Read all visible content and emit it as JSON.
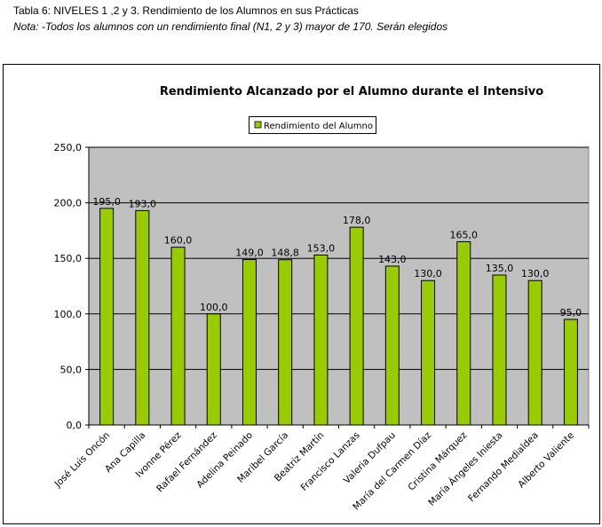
{
  "caption": {
    "title": "Tabla 6: NIVELES 1 ,2 y 3. Rendimiento de los Alumnos en sus Prácticas",
    "note": "Nota: -Todos los alumnos con un rendimiento final (N1, 2 y 3) mayor de 170. Serán elegidos"
  },
  "chart_data": {
    "type": "bar",
    "title": "Rendimiento Alcanzado por el Alumno durante el Intensivo",
    "legend": [
      "Rendimiento del Alumno"
    ],
    "legend_position": "top",
    "categories": [
      "José Luis Oncón",
      "Ana Capilla",
      "Ivonne Pérez",
      "Rafael Fernández",
      "Adelina Peinado",
      "Maribel García",
      "Beatriz Martín",
      "Francisco Lanzas",
      "Valeria Dufpau",
      "María del Carmen Díaz",
      "Cristina Márquez",
      "María Ángeles Iniesta",
      "Fernando Medialdea",
      "Alberto Valiente"
    ],
    "values": [
      195.0,
      193.0,
      160.0,
      100.0,
      149.0,
      148.8,
      153.0,
      178.0,
      143.0,
      130.0,
      165.0,
      135.0,
      130.0,
      95.0
    ],
    "value_labels": [
      "195,0",
      "193,0",
      "160,0",
      "100,0",
      "149,0",
      "148,8",
      "153,0",
      "178,0",
      "143,0",
      "130,0",
      "165,0",
      "135,0",
      "130,0",
      "95,0"
    ],
    "yticks": [
      "0,0",
      "50,0",
      "100,0",
      "150,0",
      "200,0",
      "250,0"
    ],
    "ylim": [
      0,
      250
    ],
    "grid": true,
    "bar_color": "#99CC00",
    "plot_bg": "#C0C0C0"
  }
}
